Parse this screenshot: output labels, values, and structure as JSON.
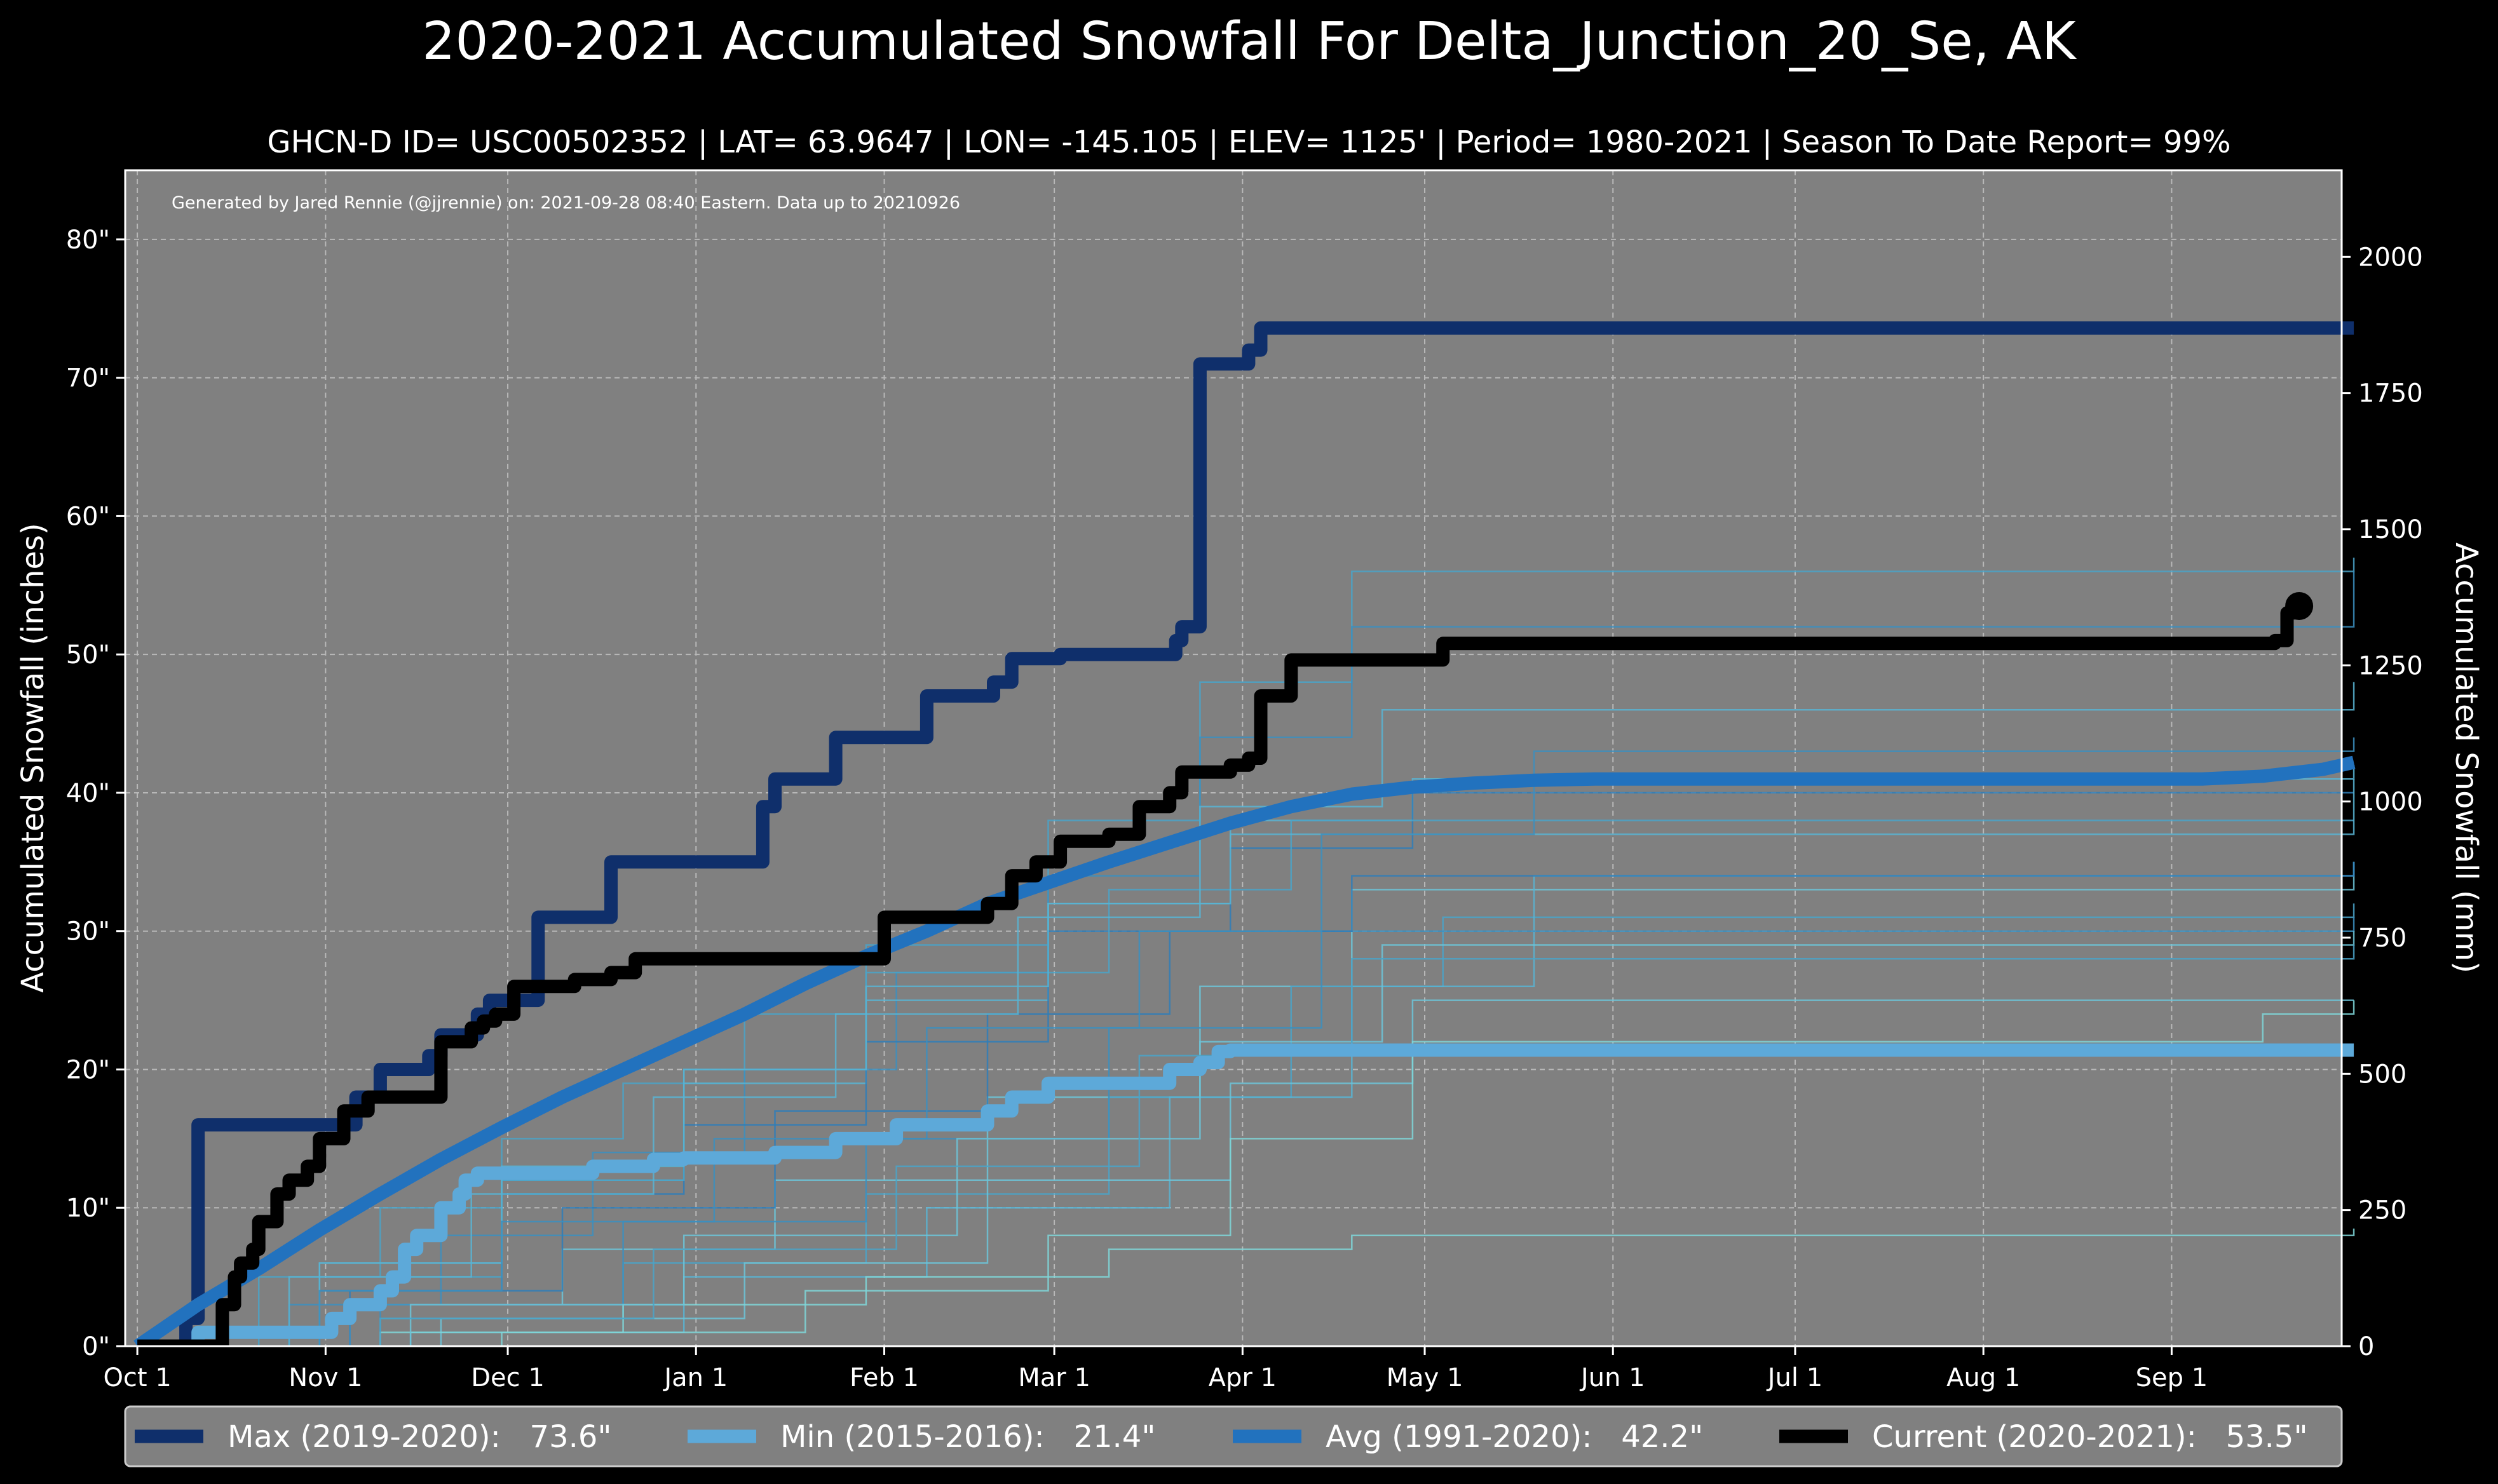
{
  "chart_data": {
    "type": "line",
    "title": "2020-2021 Accumulated Snowfall For Delta_Junction_20_Se, AK",
    "subtitle": "GHCN-D ID= USC00502352 | LAT= 63.9647 | LON= -145.105 | ELEV= 1125' | Period= 1980-2021 | Season To Date Report= 99%",
    "credit": "Generated by Jared Rennie (@jjrennie) on: 2021-09-28 08:40 Eastern. Data up to 20210926",
    "ylabel": "Accumulated Snowfall (inches)",
    "y2label": "Accumulated Snowfall (mm)",
    "xlim_days": [
      -2,
      363
    ],
    "ylim": [
      0,
      85
    ],
    "y2lim": [
      0,
      2159
    ],
    "x_ticks": [
      {
        "day": 0,
        "label": "Oct 1"
      },
      {
        "day": 31,
        "label": "Nov 1"
      },
      {
        "day": 61,
        "label": "Dec 1"
      },
      {
        "day": 92,
        "label": "Jan 1"
      },
      {
        "day": 123,
        "label": "Feb 1"
      },
      {
        "day": 151,
        "label": "Mar 1"
      },
      {
        "day": 182,
        "label": "Apr 1"
      },
      {
        "day": 212,
        "label": "May 1"
      },
      {
        "day": 243,
        "label": "Jun 1"
      },
      {
        "day": 273,
        "label": "Jul 1"
      },
      {
        "day": 304,
        "label": "Aug 1"
      },
      {
        "day": 335,
        "label": "Sep 1"
      }
    ],
    "y_ticks": [
      {
        "value": 0,
        "label": "0\""
      },
      {
        "value": 10,
        "label": "10\""
      },
      {
        "value": 20,
        "label": "20\""
      },
      {
        "value": 30,
        "label": "30\""
      },
      {
        "value": 40,
        "label": "40\""
      },
      {
        "value": 50,
        "label": "50\""
      },
      {
        "value": 60,
        "label": "60\""
      },
      {
        "value": 70,
        "label": "70\""
      },
      {
        "value": 80,
        "label": "80\""
      }
    ],
    "y2_ticks": [
      {
        "value": 0,
        "label": "0"
      },
      {
        "value": 250,
        "label": "250"
      },
      {
        "value": 500,
        "label": "500"
      },
      {
        "value": 750,
        "label": "750"
      },
      {
        "value": 1000,
        "label": "1000"
      },
      {
        "value": 1250,
        "label": "1250"
      },
      {
        "value": 1500,
        "label": "1500"
      },
      {
        "value": 1750,
        "label": "1750"
      },
      {
        "value": 2000,
        "label": "2000"
      }
    ],
    "background_series": [
      {
        "color": "#4aa3c8",
        "x": [
          0,
          20,
          40,
          60,
          80,
          100,
          120,
          150,
          175,
          200,
          365
        ],
        "y": [
          0,
          5,
          10,
          15,
          19,
          24,
          29,
          38,
          48,
          56,
          57
        ]
      },
      {
        "color": "#3b8fc0",
        "x": [
          0,
          25,
          50,
          75,
          100,
          125,
          150,
          175,
          200,
          365
        ],
        "y": [
          0,
          3,
          8,
          14,
          20,
          27,
          34,
          44,
          52,
          56
        ]
      },
      {
        "color": "#58b4d4",
        "x": [
          0,
          30,
          60,
          90,
          120,
          150,
          180,
          210,
          365
        ],
        "y": [
          0,
          6,
          12,
          19,
          25,
          32,
          38,
          41,
          42
        ]
      },
      {
        "color": "#2f7eb8",
        "x": [
          0,
          30,
          60,
          90,
          120,
          150,
          180,
          210,
          365
        ],
        "y": [
          0,
          4,
          11,
          16,
          22,
          30,
          36,
          40,
          40
        ]
      },
      {
        "color": "#6cc4d8",
        "x": [
          0,
          35,
          70,
          105,
          140,
          175,
          200,
          365
        ],
        "y": [
          0,
          3,
          7,
          12,
          18,
          26,
          33,
          35
        ]
      },
      {
        "color": "#4aa3c8",
        "x": [
          0,
          40,
          80,
          120,
          160,
          190,
          215,
          365
        ],
        "y": [
          0,
          2,
          6,
          11,
          18,
          26,
          31,
          32
        ]
      },
      {
        "color": "#58b4d4",
        "x": [
          0,
          45,
          90,
          130,
          170,
          200,
          230,
          365
        ],
        "y": [
          0,
          1,
          5,
          10,
          18,
          26,
          34,
          35
        ]
      },
      {
        "color": "#3b8fc0",
        "x": [
          0,
          40,
          80,
          120,
          160,
          195,
          365
        ],
        "y": [
          0,
          3,
          9,
          15,
          23,
          30,
          31
        ]
      },
      {
        "color": "#6cc4d8",
        "x": [
          0,
          50,
          100,
          140,
          180,
          210,
          365
        ],
        "y": [
          0,
          2,
          6,
          12,
          19,
          25,
          25
        ]
      },
      {
        "color": "#7fd6d8",
        "x": [
          0,
          40,
          80,
          120,
          160,
          200,
          365
        ],
        "y": [
          0,
          1,
          3,
          5,
          7,
          8,
          8.5
        ]
      },
      {
        "color": "#4aa3c8",
        "x": [
          0,
          30,
          60,
          90,
          120,
          160,
          190,
          365
        ],
        "y": [
          0,
          5,
          12,
          20,
          27,
          33,
          38,
          38
        ]
      },
      {
        "color": "#58b4d4",
        "x": [
          0,
          30,
          60,
          90,
          120,
          150,
          180,
          365
        ],
        "y": [
          0,
          6,
          13,
          20,
          26,
          32,
          37,
          41
        ]
      },
      {
        "color": "#2f7eb8",
        "x": [
          0,
          35,
          70,
          105,
          140,
          170,
          200,
          365
        ],
        "y": [
          0,
          4,
          10,
          17,
          24,
          30,
          34,
          35
        ]
      },
      {
        "color": "#6cc4d8",
        "x": [
          0,
          45,
          90,
          135,
          175,
          205,
          365
        ],
        "y": [
          0,
          3,
          8,
          15,
          22,
          29,
          30
        ]
      },
      {
        "color": "#3b8fc0",
        "x": [
          0,
          30,
          60,
          95,
          130,
          165,
          195,
          230,
          365
        ],
        "y": [
          0,
          4,
          9,
          15,
          23,
          30,
          37,
          43,
          44
        ]
      },
      {
        "color": "#7fd6d8",
        "x": [
          0,
          60,
          110,
          150,
          180,
          210,
          350,
          365
        ],
        "y": [
          0,
          1,
          4,
          8,
          15,
          22,
          24,
          25
        ]
      },
      {
        "color": "#58b4d4",
        "x": [
          0,
          25,
          55,
          85,
          115,
          145,
          175,
          205,
          365
        ],
        "y": [
          0,
          5,
          11,
          18,
          24,
          31,
          39,
          46,
          48
        ]
      },
      {
        "color": "#4aa3c8",
        "x": [
          0,
          40,
          85,
          125,
          165,
          200,
          365
        ],
        "y": [
          0,
          2,
          7,
          13,
          21,
          28,
          29
        ]
      }
    ],
    "series": [
      {
        "name": "Max (2019-2020):   73.6\"",
        "color": "#0f2f6b",
        "width": 21,
        "step": true,
        "x": [
          0,
          8,
          10,
          12,
          32,
          36,
          40,
          48,
          50,
          53,
          56,
          58,
          62,
          66,
          71,
          78,
          79,
          85,
          88,
          92,
          99,
          103,
          105,
          109,
          114,
          115,
          118,
          120,
          125,
          130,
          134,
          141,
          144,
          147,
          152,
          155,
          158,
          161,
          171,
          172,
          175,
          178,
          180,
          183,
          185,
          365
        ],
        "y": [
          0,
          2,
          16,
          16,
          16,
          18,
          20,
          21,
          22.5,
          22.5,
          24,
          25,
          25,
          31,
          31,
          35,
          35,
          35,
          35,
          35,
          35,
          39,
          41,
          41,
          41,
          44,
          44,
          44,
          44,
          47,
          47,
          48,
          49.7,
          49.7,
          50,
          50,
          50,
          50,
          51,
          52,
          71,
          71,
          71,
          72,
          73.6,
          73.6
        ]
      },
      {
        "name": "Min (2015-2016):   21.4\"",
        "color": "#5da9d9",
        "width": 21,
        "step": true,
        "x": [
          0,
          10,
          30,
          32,
          35,
          40,
          42,
          44,
          46,
          50,
          53,
          54,
          56,
          60,
          75,
          85,
          90,
          95,
          105,
          115,
          120,
          125,
          127,
          130,
          140,
          144,
          150,
          160,
          170,
          175,
          178,
          180,
          365
        ],
        "y": [
          0,
          1,
          1,
          2,
          3,
          4,
          5,
          7,
          8,
          10,
          11,
          12,
          12.5,
          12.5,
          13,
          13.5,
          13.6,
          13.6,
          14,
          15,
          15,
          16,
          16,
          16,
          17,
          18,
          19,
          19,
          20,
          20.5,
          21.3,
          21.4,
          21.4
        ]
      },
      {
        "name": "Avg (1991-2020):   42.2\"",
        "color": "#2272be",
        "width": 21,
        "step": false,
        "x": [
          0,
          10,
          20,
          30,
          40,
          50,
          60,
          70,
          80,
          90,
          100,
          110,
          120,
          130,
          140,
          150,
          160,
          170,
          180,
          190,
          200,
          210,
          220,
          230,
          240,
          260,
          280,
          300,
          320,
          340,
          350,
          360,
          365
        ],
        "y": [
          0,
          3,
          5.6,
          8.4,
          11,
          13.5,
          15.8,
          18,
          20,
          22,
          24,
          26.2,
          28.2,
          30,
          32,
          33.5,
          35,
          36.4,
          37.8,
          39,
          39.9,
          40.4,
          40.7,
          40.9,
          41,
          41,
          41,
          41,
          41,
          41,
          41.2,
          41.7,
          42.2
        ]
      },
      {
        "name": "Current (2020-2021):   53.5\"",
        "color": "#000000",
        "width": 21,
        "step": true,
        "x": [
          0,
          12,
          14,
          16,
          17,
          19,
          20,
          23,
          25,
          26,
          28,
          30,
          34,
          38,
          42,
          46,
          50,
          55,
          57,
          59,
          62,
          65,
          68,
          72,
          75,
          78,
          80,
          82,
          95,
          110,
          115,
          120,
          123,
          126,
          130,
          140,
          144,
          145,
          148,
          152,
          155,
          160,
          165,
          170,
          172,
          175,
          178,
          180,
          183,
          185,
          190,
          205,
          210,
          215,
          290,
          320,
          350,
          352,
          354,
          356
        ],
        "y": [
          0,
          0,
          3,
          5,
          6,
          7,
          9,
          11,
          12,
          12,
          13,
          15,
          17,
          18,
          18,
          18,
          22,
          23,
          23.5,
          24,
          26,
          26,
          26,
          26.5,
          26.5,
          27,
          27,
          28,
          28,
          28,
          28,
          28,
          31,
          31,
          31,
          32,
          34,
          34,
          35,
          36.5,
          36.5,
          37,
          39,
          40,
          41.5,
          41.5,
          41.5,
          42,
          42.5,
          47,
          49.6,
          49.6,
          49.6,
          50.8,
          50.8,
          50.8,
          50.8,
          51,
          53,
          53.5
        ]
      }
    ],
    "current_marker": {
      "day": 356,
      "value": 53.5
    }
  }
}
